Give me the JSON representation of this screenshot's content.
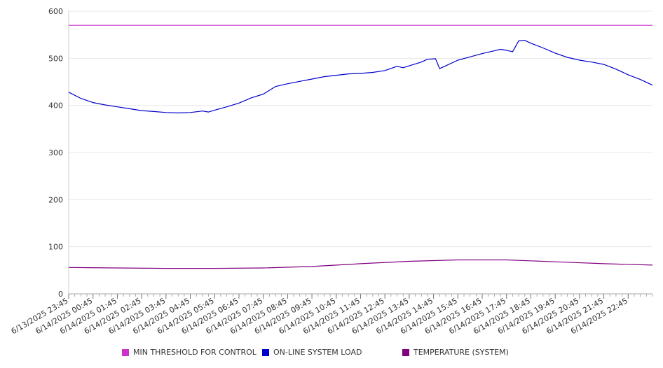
{
  "chart_data": {
    "type": "line",
    "title": "",
    "xlabel": "",
    "ylabel": "",
    "ylim": [
      0,
      600
    ],
    "y_ticks": [
      0,
      100,
      200,
      300,
      400,
      500,
      600
    ],
    "grid": true,
    "legend_position": "bottom",
    "x_ticks": [
      "6/13/2025 23:45",
      "6/14/2025 00:45",
      "6/14/2025 01:45",
      "6/14/2025 02:45",
      "6/14/2025 03:45",
      "6/14/2025 04:45",
      "6/14/2025 05:45",
      "6/14/2025 06:45",
      "6/14/2025 07:45",
      "6/14/2025 08:45",
      "6/14/2025 09:45",
      "6/14/2025 10:45",
      "6/14/2025 11:45",
      "6/14/2025 12:45",
      "6/14/2025 13:45",
      "6/14/2025 14:45",
      "6/14/2025 15:45",
      "6/14/2025 16:45",
      "6/14/2025 17:45",
      "6/14/2025 18:45",
      "6/14/2025 19:45",
      "6/14/2025 20:45",
      "6/14/2025 21:45",
      "6/14/2025 22:45"
    ],
    "x_end": "6/14/2025 23:45",
    "minor_ticks_per_hour": 4,
    "series": [
      {
        "name": "MIN THRESHOLD FOR CONTROL",
        "color": "#cc33cc",
        "points": [
          [
            "6/13/2025 23:45",
            570
          ],
          [
            "6/14/2025 23:45",
            570
          ]
        ]
      },
      {
        "name": "ON-LINE SYSTEM LOAD",
        "color": "#0000cc",
        "points": [
          [
            "6/13/2025 23:45",
            428
          ],
          [
            "6/14/2025 00:15",
            415
          ],
          [
            "6/14/2025 00:45",
            406
          ],
          [
            "6/14/2025 01:15",
            401
          ],
          [
            "6/14/2025 01:45",
            397
          ],
          [
            "6/14/2025 02:15",
            393
          ],
          [
            "6/14/2025 02:45",
            389
          ],
          [
            "6/14/2025 03:15",
            387
          ],
          [
            "6/14/2025 03:45",
            385
          ],
          [
            "6/14/2025 04:15",
            384
          ],
          [
            "6/14/2025 04:45",
            385
          ],
          [
            "6/14/2025 05:15",
            388
          ],
          [
            "6/14/2025 05:30",
            386
          ],
          [
            "6/14/2025 05:45",
            390
          ],
          [
            "6/14/2025 06:15",
            397
          ],
          [
            "6/14/2025 06:45",
            405
          ],
          [
            "6/14/2025 07:15",
            416
          ],
          [
            "6/14/2025 07:45",
            424
          ],
          [
            "6/14/2025 08:15",
            440
          ],
          [
            "6/14/2025 08:45",
            446
          ],
          [
            "6/14/2025 09:15",
            451
          ],
          [
            "6/14/2025 09:45",
            456
          ],
          [
            "6/14/2025 10:15",
            461
          ],
          [
            "6/14/2025 10:45",
            464
          ],
          [
            "6/14/2025 11:15",
            467
          ],
          [
            "6/14/2025 11:45",
            468
          ],
          [
            "6/14/2025 12:15",
            470
          ],
          [
            "6/14/2025 12:45",
            474
          ],
          [
            "6/14/2025 13:15",
            483
          ],
          [
            "6/14/2025 13:30",
            480
          ],
          [
            "6/14/2025 13:45",
            484
          ],
          [
            "6/14/2025 14:15",
            492
          ],
          [
            "6/14/2025 14:30",
            498
          ],
          [
            "6/14/2025 14:50",
            499
          ],
          [
            "6/14/2025 15:00",
            478
          ],
          [
            "6/14/2025 15:15",
            484
          ],
          [
            "6/14/2025 15:45",
            496
          ],
          [
            "6/14/2025 16:15",
            503
          ],
          [
            "6/14/2025 16:45",
            510
          ],
          [
            "6/14/2025 17:15",
            516
          ],
          [
            "6/14/2025 17:30",
            519
          ],
          [
            "6/14/2025 17:45",
            517
          ],
          [
            "6/14/2025 18:00",
            514
          ],
          [
            "6/14/2025 18:15",
            537
          ],
          [
            "6/14/2025 18:30",
            538
          ],
          [
            "6/14/2025 18:45",
            532
          ],
          [
            "6/14/2025 19:15",
            522
          ],
          [
            "6/14/2025 19:45",
            511
          ],
          [
            "6/14/2025 20:15",
            502
          ],
          [
            "6/14/2025 20:45",
            496
          ],
          [
            "6/14/2025 21:15",
            492
          ],
          [
            "6/14/2025 21:45",
            487
          ],
          [
            "6/14/2025 22:15",
            477
          ],
          [
            "6/14/2025 22:45",
            465
          ],
          [
            "6/14/2025 23:15",
            455
          ],
          [
            "6/14/2025 23:45",
            443
          ]
        ]
      },
      {
        "name": "TEMPERATURE (SYSTEM)",
        "color": "#800080",
        "points": [
          [
            "6/13/2025 23:45",
            56
          ],
          [
            "6/14/2025 01:45",
            55
          ],
          [
            "6/14/2025 03:45",
            54
          ],
          [
            "6/14/2025 05:45",
            54
          ],
          [
            "6/14/2025 07:45",
            55
          ],
          [
            "6/14/2025 09:45",
            58
          ],
          [
            "6/14/2025 11:45",
            64
          ],
          [
            "6/14/2025 13:45",
            69
          ],
          [
            "6/14/2025 15:45",
            72
          ],
          [
            "6/14/2025 17:45",
            72
          ],
          [
            "6/14/2025 19:45",
            68
          ],
          [
            "6/14/2025 21:45",
            64
          ],
          [
            "6/14/2025 23:45",
            61
          ]
        ]
      }
    ]
  }
}
